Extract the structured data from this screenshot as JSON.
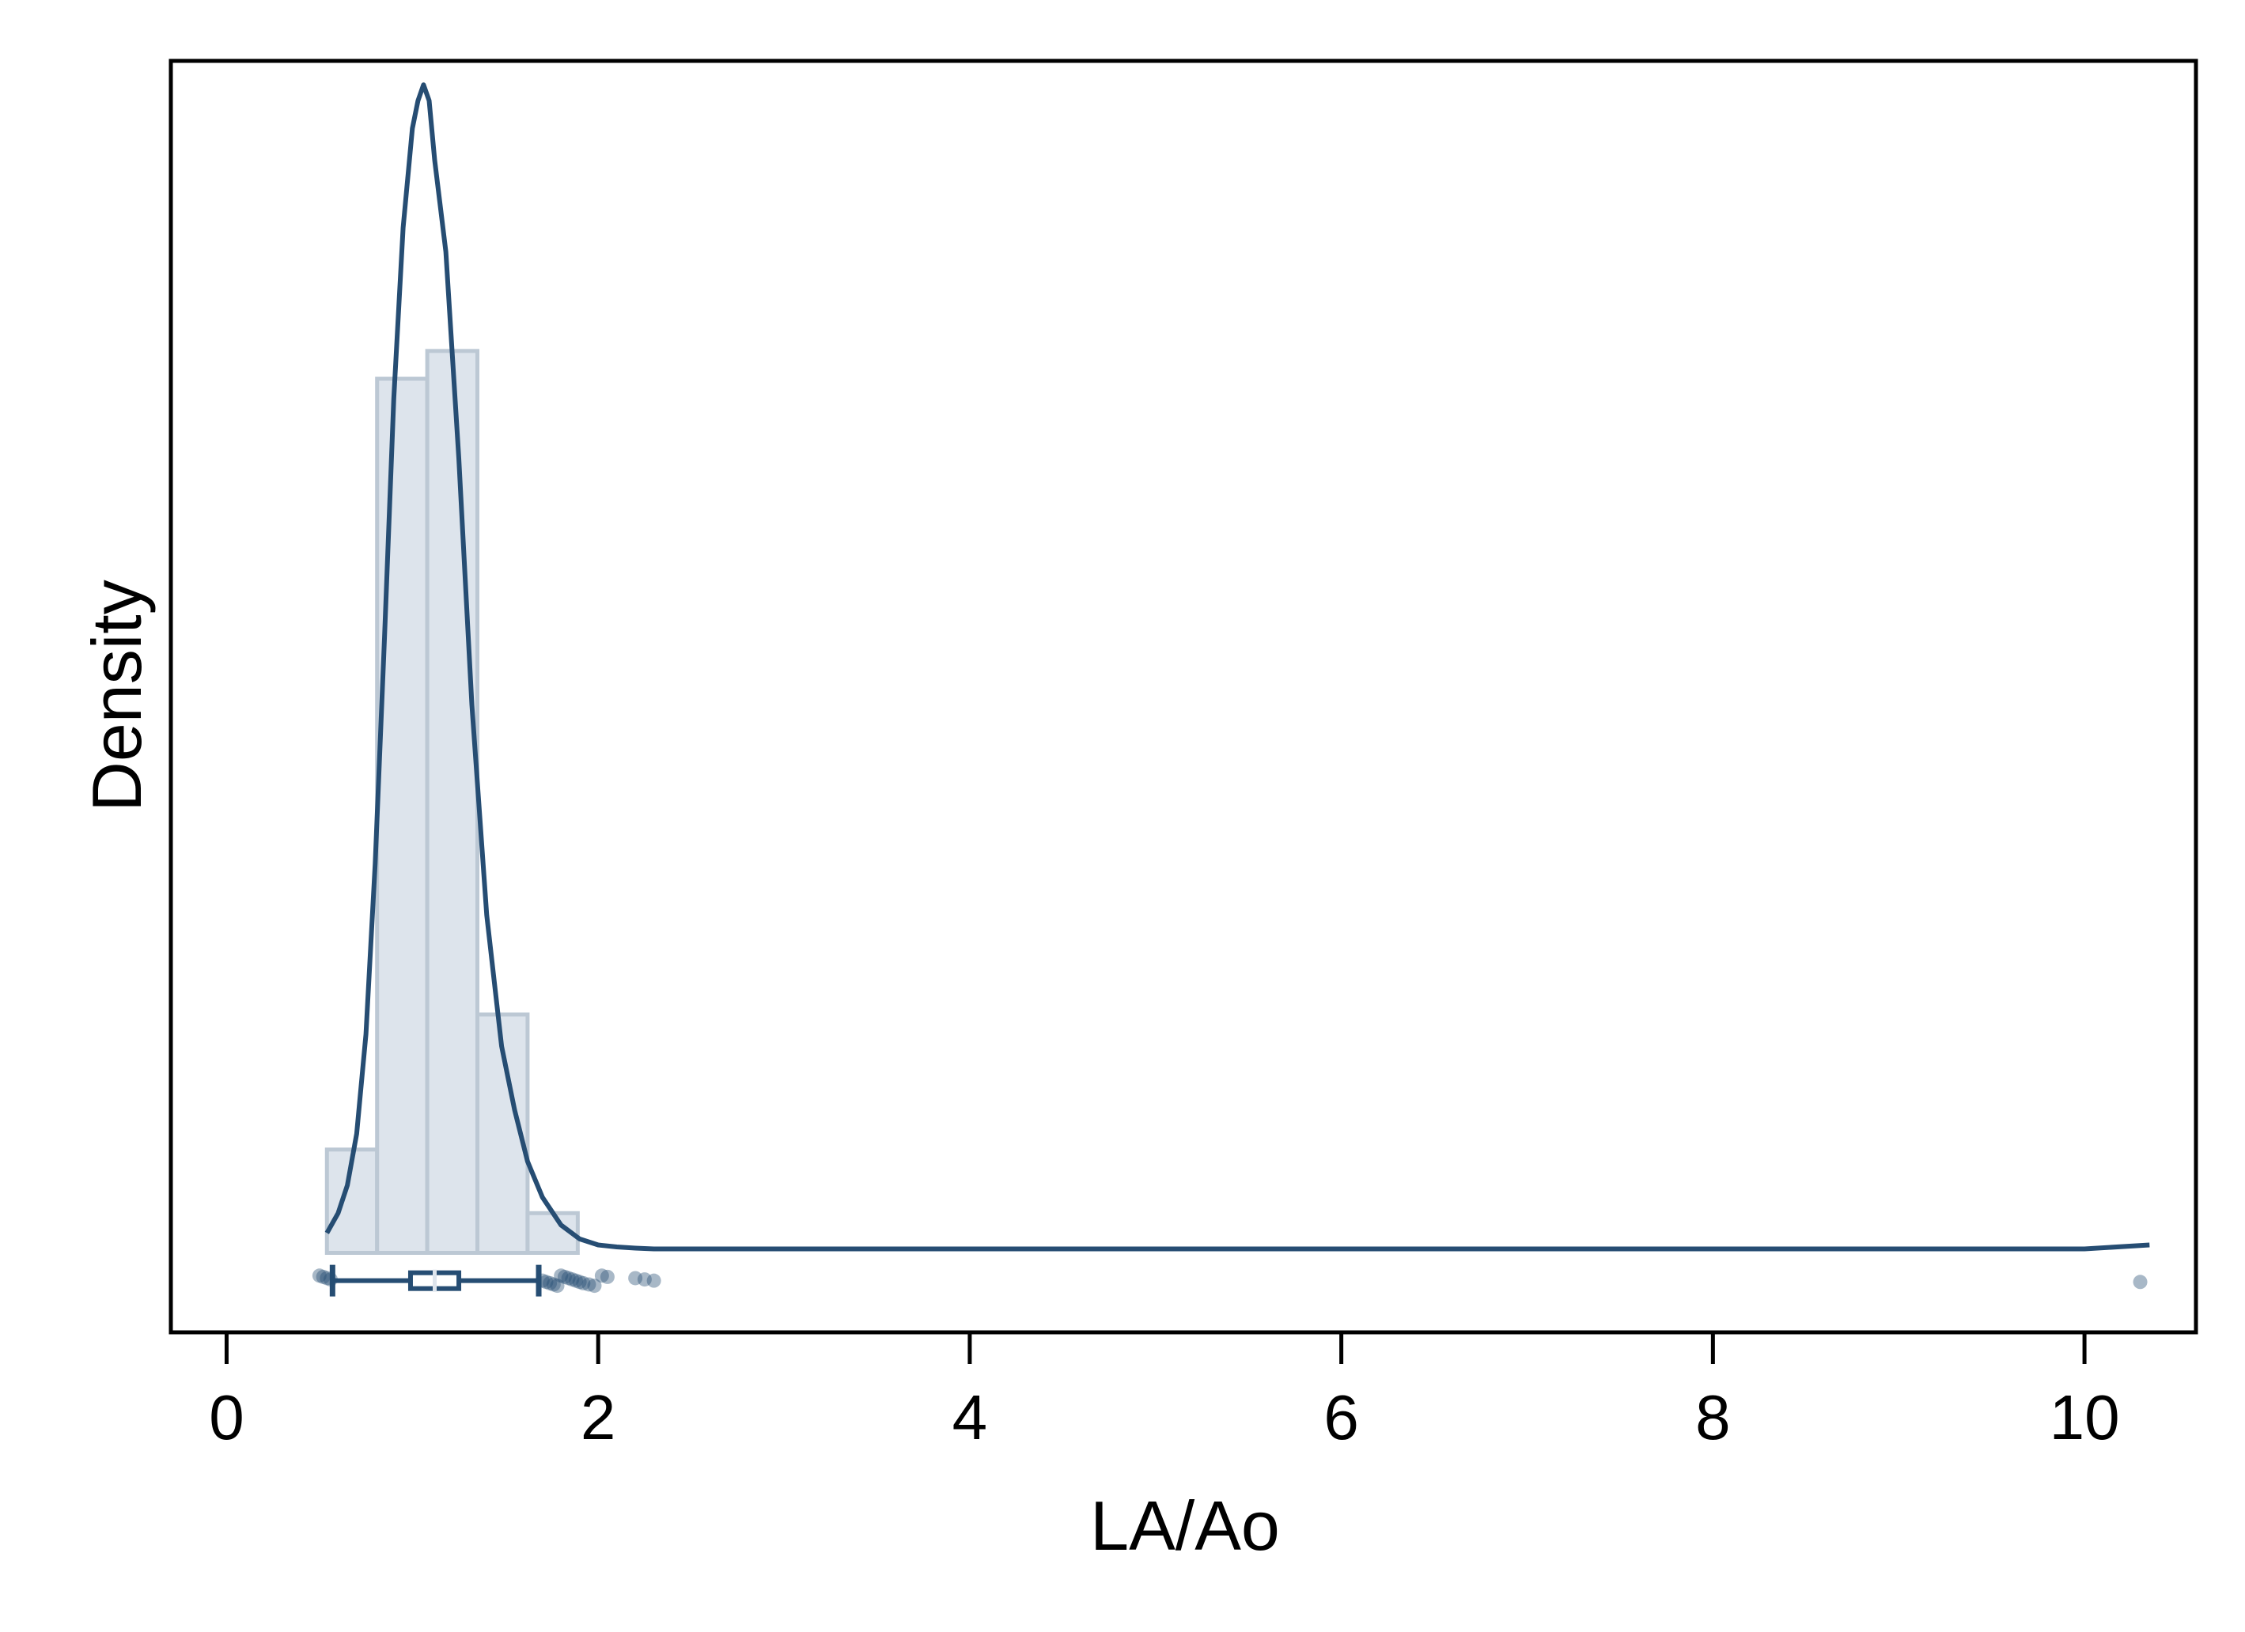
{
  "chart_data": {
    "type": "histogram",
    "xlabel": "LA/Ao",
    "ylabel": "Density",
    "xlim": [
      -0.3,
      10.6
    ],
    "ylim": [
      -0.2,
      3.0
    ],
    "x_ticks": [
      0,
      2,
      4,
      6,
      8,
      10
    ],
    "x_tick_labels": [
      "0",
      "2",
      "4",
      "6",
      "8",
      "10"
    ],
    "y_ticks_shown": false,
    "grid": false,
    "colors": {
      "bar_fill": "#dde4ec",
      "bar_stroke": "#bcc8d4",
      "line": "#264d73",
      "points": "#264d73"
    },
    "histogram": {
      "bin_edges": [
        0.54,
        0.81,
        1.08,
        1.35,
        1.62,
        1.89
      ],
      "density": [
        0.26,
        2.2,
        2.27,
        0.6,
        0.1
      ]
    },
    "kde": {
      "x": [
        0.54,
        0.6,
        0.65,
        0.7,
        0.75,
        0.8,
        0.85,
        0.9,
        0.95,
        1.0,
        1.03,
        1.06,
        1.09,
        1.12,
        1.18,
        1.25,
        1.32,
        1.4,
        1.48,
        1.55,
        1.62,
        1.7,
        1.8,
        1.9,
        2.0,
        2.1,
        2.2,
        2.3,
        2.4,
        3.0,
        5.0,
        8.0,
        10.0,
        10.35
      ],
      "y": [
        0.05,
        0.1,
        0.17,
        0.3,
        0.55,
        0.98,
        1.55,
        2.15,
        2.58,
        2.83,
        2.9,
        2.94,
        2.9,
        2.75,
        2.52,
        2.0,
        1.38,
        0.85,
        0.52,
        0.36,
        0.23,
        0.14,
        0.07,
        0.035,
        0.02,
        0.015,
        0.012,
        0.01,
        0.01,
        0.01,
        0.01,
        0.01,
        0.01,
        0.02
      ]
    },
    "boxplot": {
      "whisker_low": 0.57,
      "q1": 0.99,
      "median": 1.12,
      "q3": 1.25,
      "whisker_high": 1.68,
      "y_level": -0.07
    },
    "points": {
      "x": [
        0.5,
        0.52,
        0.54,
        0.56,
        1.7,
        1.72,
        1.74,
        1.76,
        1.78,
        1.8,
        1.82,
        1.84,
        1.86,
        1.88,
        1.9,
        1.92,
        1.95,
        1.98,
        2.02,
        2.05,
        2.2,
        2.25,
        2.3,
        10.3
      ],
      "y": -0.07
    }
  }
}
